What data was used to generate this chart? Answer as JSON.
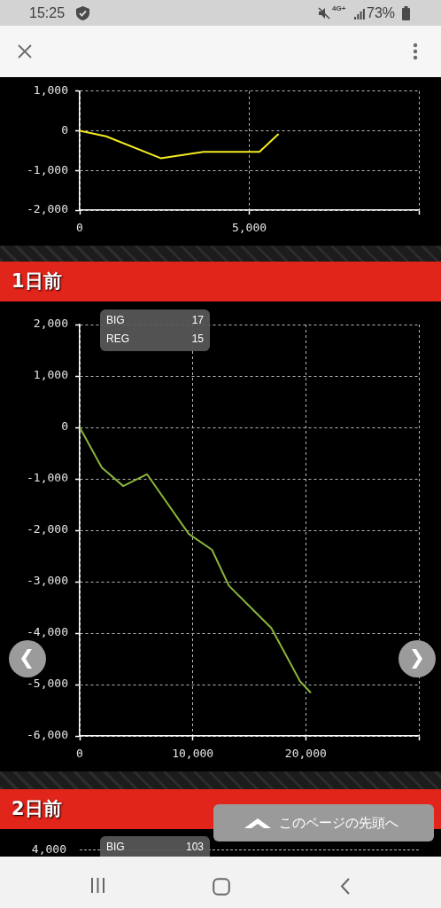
{
  "chart_data": [
    {
      "type": "other",
      "annotations": [
        "15:25",
        "4G+",
        "73%"
      ]
    },
    {
      "type": "line",
      "x": [
        0,
        780,
        2390,
        3650,
        5300,
        5850
      ],
      "series": [
        {
          "color": "#f2eb22",
          "values": [
            0,
            -140,
            -690,
            -530,
            -530,
            -90
          ]
        }
      ],
      "xlim": [
        0,
        10000
      ],
      "xticks": [
        0,
        {
          "value": 5000,
          "label": "5,000"
        },
        {
          "value": 10000,
          "label": null
        }
      ],
      "ylim": [
        -2000,
        1000
      ],
      "yticks": [
        {
          "value": -2000,
          "label": "-2,000"
        },
        {
          "value": -1000,
          "label": "-1,000"
        },
        0,
        {
          "value": 1000,
          "label": "1,000"
        }
      ],
      "grid": true,
      "marker": "none"
    },
    {
      "type": "line",
      "title": "1日前",
      "annotations": [
        "BIG",
        "17",
        "REG",
        "15"
      ],
      "x": [
        0,
        1950,
        3850,
        5950,
        9650,
        11700,
        13200,
        16950,
        19500,
        20400
      ],
      "series": [
        {
          "color": "#8bb53a",
          "values": [
            0,
            -780,
            -1140,
            -910,
            -2070,
            -2380,
            -3080,
            -3900,
            -4940,
            -5150
          ]
        }
      ],
      "xlim": [
        0,
        30000
      ],
      "xticks": [
        0,
        {
          "value": 10000,
          "label": "10,000"
        },
        {
          "value": 20000,
          "label": "20,000"
        },
        {
          "value": 30000,
          "label": null
        }
      ],
      "ylim": [
        -6000,
        2000
      ],
      "yticks": [
        {
          "value": -6000,
          "label": "-6,000"
        },
        {
          "value": -5000,
          "label": "-5,000"
        },
        {
          "value": -4000,
          "label": "-4,000"
        },
        {
          "value": -3000,
          "label": "-3,000"
        },
        {
          "value": -2000,
          "label": "-2,000"
        },
        {
          "value": -1000,
          "label": "-1,000"
        },
        0,
        {
          "value": 1000,
          "label": "1,000"
        },
        {
          "value": 2000,
          "label": "2,000"
        }
      ],
      "grid": true,
      "marker": "none"
    },
    {
      "type": "other",
      "title": "2日前",
      "annotations": [
        "BIG",
        "103",
        "4,000",
        "このページの先頭へ"
      ]
    }
  ]
}
